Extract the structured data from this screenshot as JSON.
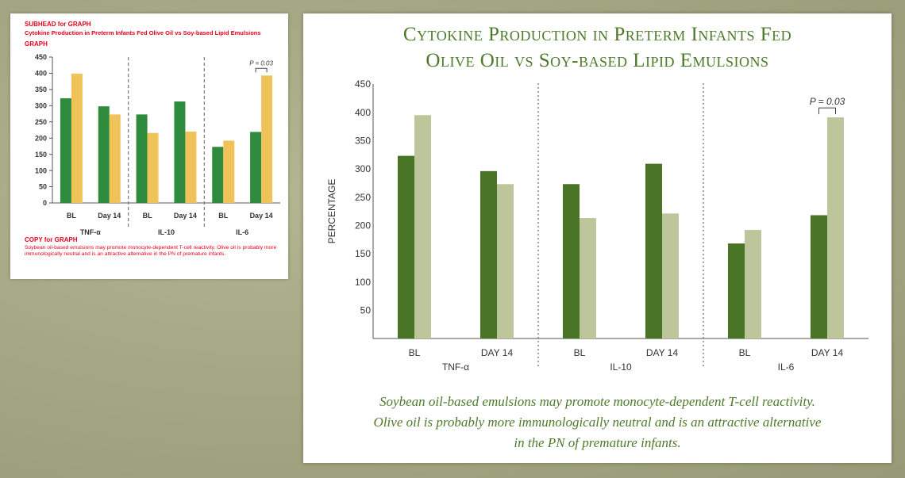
{
  "spec_card": {
    "subhead_label": "SUBHEAD for GRAPH",
    "subhead_text": "Cytokine Production in Preterm Infants Fed Olive Oil vs Soy-based Lipid Emulsions",
    "graph_label": "GRAPH",
    "copy_label": "COPY for GRAPH",
    "copy_text": "Soybean oil-based emulsions may promote monocyte-dependent T-cell reactivity. Olive oil is probably more immunologically neutral and is an attractive alternative in the PN of premature infants.",
    "bar_colors": [
      "#2e8a3c",
      "#f0c25a"
    ]
  },
  "main_card": {
    "title_line1": "Cytokine Production in Preterm Infants Fed",
    "title_line2": "Olive Oil vs Soy-based Lipid Emulsions",
    "caption_line1": "Soybean oil-based emulsions may promote monocyte-dependent T-cell reactivity.",
    "caption_line2": "Olive oil is probably more immunologically neutral and is an attractive alternative",
    "caption_line3": "in the PN of premature infants.",
    "bar_colors": [
      "#4a7526",
      "#bcc69a"
    ]
  },
  "chart_data": [
    {
      "type": "bar",
      "ylabel": "",
      "ylim": [
        0,
        450
      ],
      "yticks": [
        0,
        50,
        100,
        150,
        200,
        250,
        300,
        350,
        400,
        450
      ],
      "groups": [
        {
          "name": "TNF-α",
          "categories": [
            "BL",
            "Day 14"
          ]
        },
        {
          "name": "IL-10",
          "categories": [
            "BL",
            "Day 14"
          ]
        },
        {
          "name": "IL-6",
          "categories": [
            "BL",
            "Day 14"
          ]
        }
      ],
      "series": [
        {
          "values": [
            323,
            298,
            273,
            313,
            173,
            219
          ]
        },
        {
          "values": [
            399,
            273,
            216,
            220,
            192,
            393
          ]
        }
      ],
      "annotation": {
        "text": "P = 0.03",
        "category_index": 5
      }
    },
    {
      "type": "bar",
      "ylabel": "PERCENTAGE",
      "ylim": [
        0,
        450
      ],
      "yticks": [
        50,
        100,
        150,
        200,
        250,
        300,
        350,
        400,
        450
      ],
      "groups": [
        {
          "name": "TNF-α",
          "categories": [
            "BL",
            "DAY 14"
          ]
        },
        {
          "name": "IL-10",
          "categories": [
            "BL",
            "DAY 14"
          ]
        },
        {
          "name": "IL-6",
          "categories": [
            "BL",
            "DAY 14"
          ]
        }
      ],
      "series": [
        {
          "values": [
            323,
            296,
            273,
            309,
            168,
            218
          ]
        },
        {
          "values": [
            395,
            273,
            213,
            221,
            192,
            391
          ]
        }
      ],
      "annotation": {
        "text": "P = 0.03",
        "category_index": 5
      }
    }
  ]
}
